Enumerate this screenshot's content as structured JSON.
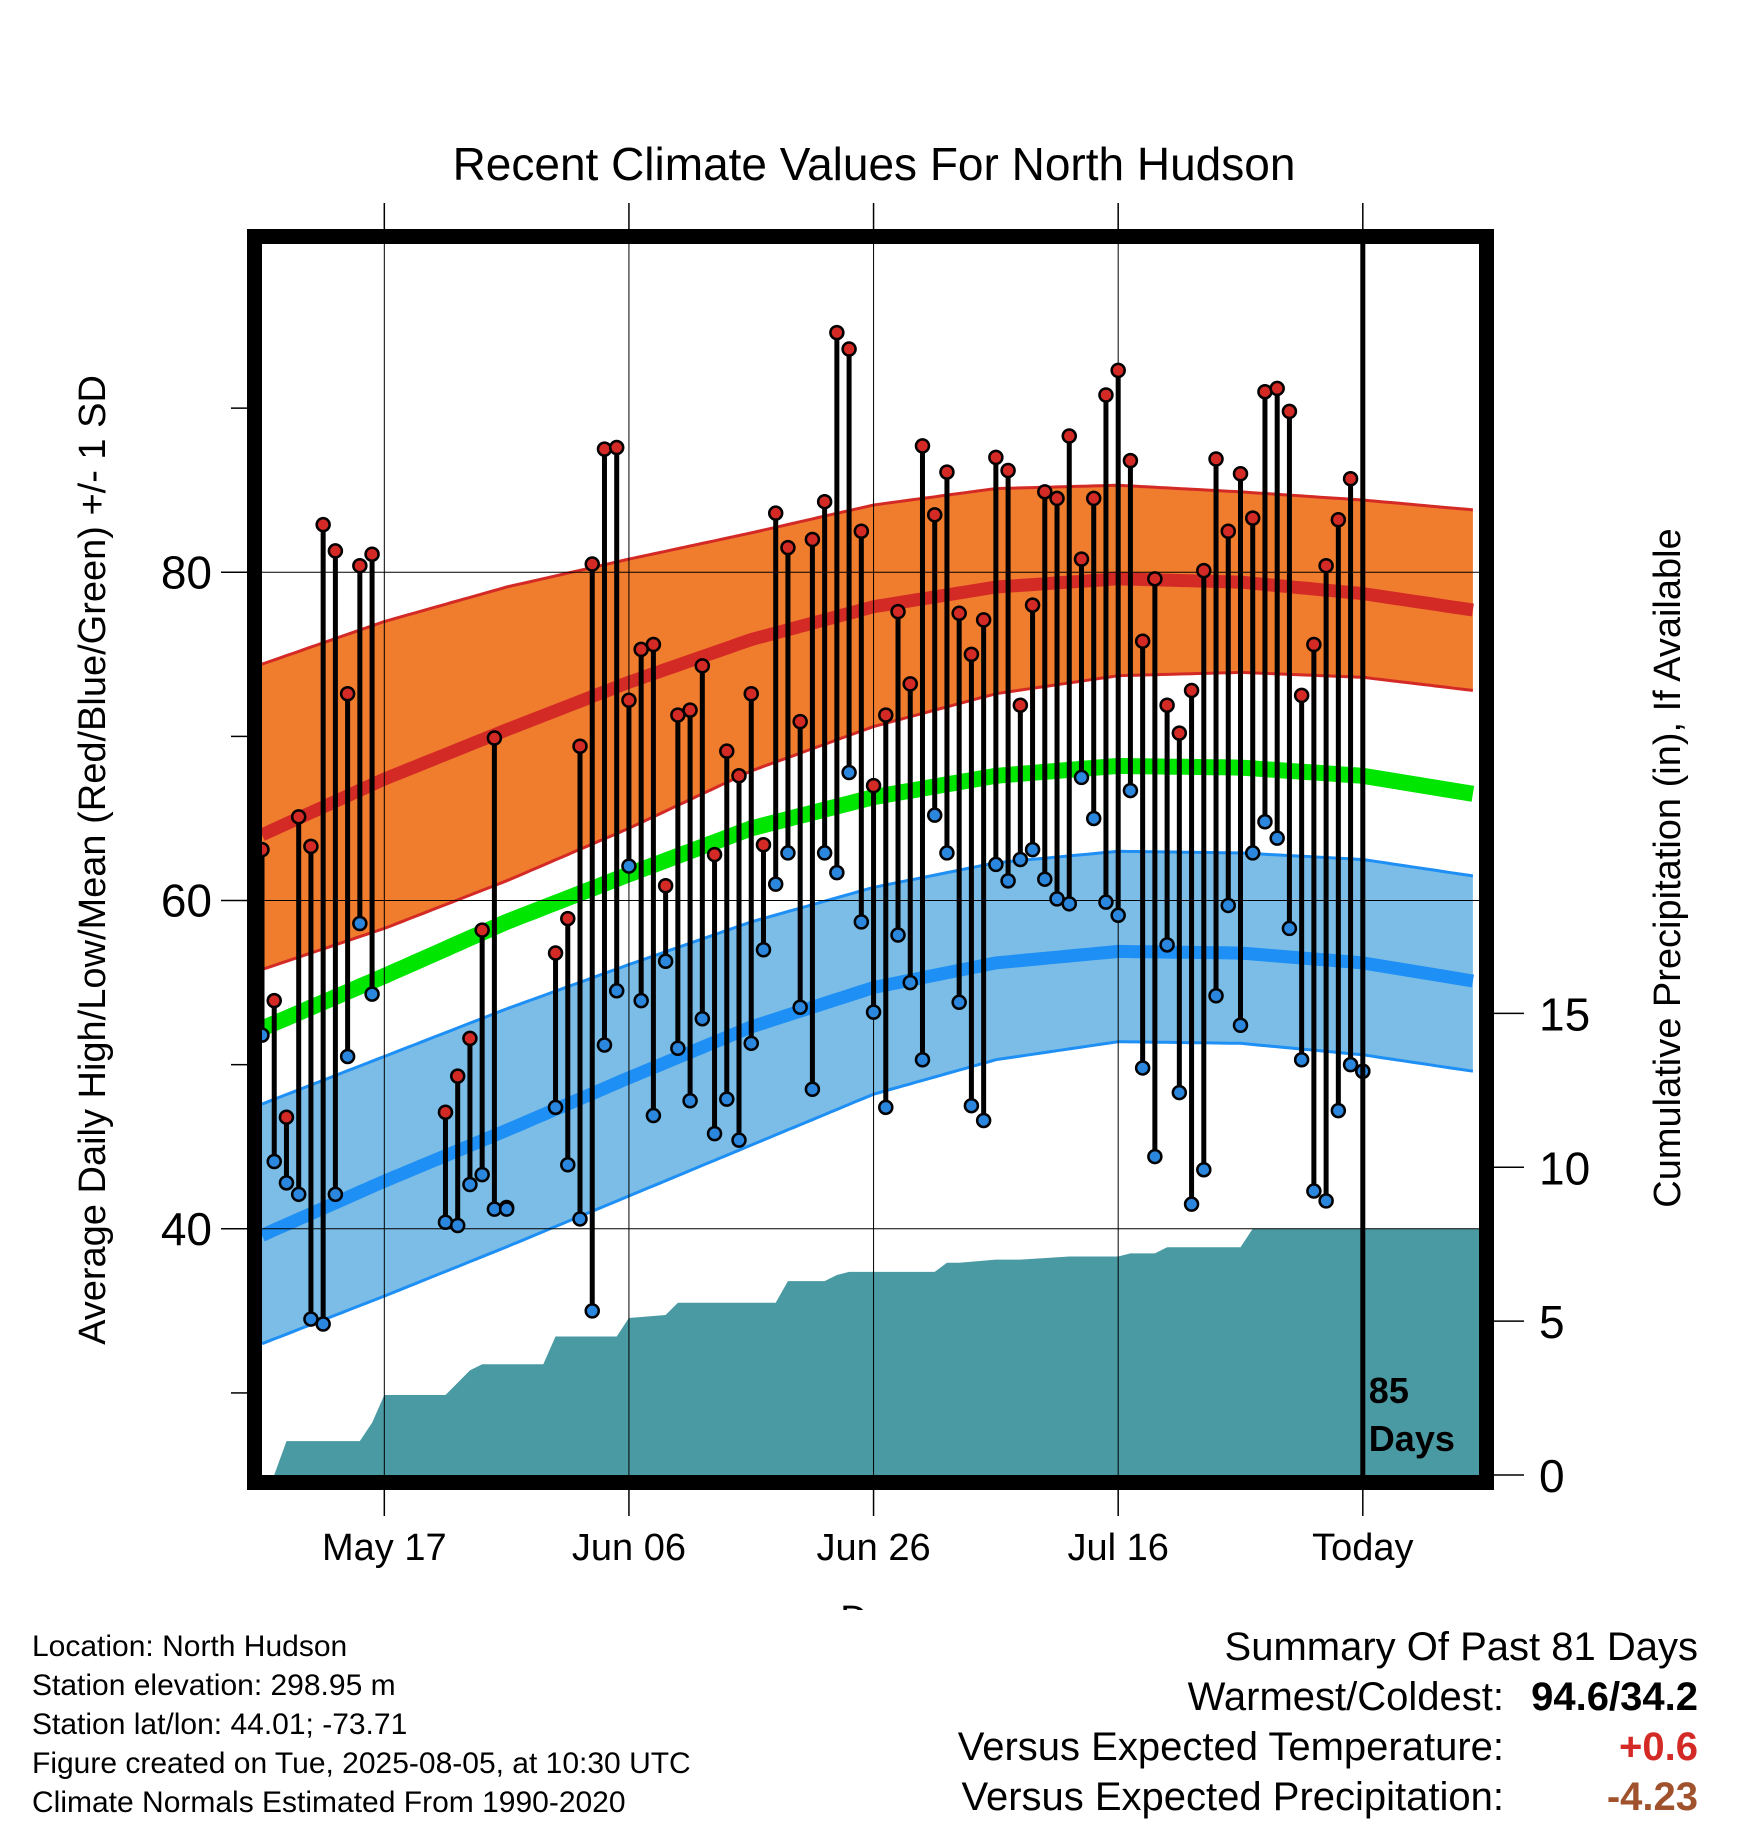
{
  "chart_data": {
    "type": "line",
    "title": "Recent Climate Values For North Hudson",
    "xlabel": "Day",
    "ylabel_left": "Average Daily High/Low/Mean (Red/Blue/Green) +/- 1 SD",
    "ylabel_right": "Cumulative Precipitation (in), If Available",
    "x_ticks": [
      {
        "day": 10,
        "label": "May 17"
      },
      {
        "day": 30,
        "label": "Jun 06"
      },
      {
        "day": 50,
        "label": "Jun 26"
      },
      {
        "day": 70,
        "label": "Jul 16"
      },
      {
        "day": 90,
        "label": "Today"
      }
    ],
    "xlim": [
      0,
      99.5
    ],
    "ylim_left": [
      25,
      100
    ],
    "y_ticks_left": [
      40,
      60,
      80
    ],
    "ylim_right": [
      0,
      40
    ],
    "y_ticks_right": [
      0,
      5,
      10,
      15
    ],
    "today_day": 90,
    "today_label": [
      "85",
      "Days"
    ],
    "normals": {
      "days": [
        0,
        10,
        20,
        30,
        40,
        50,
        60,
        70,
        80,
        90,
        99
      ],
      "high_mean": [
        64.0,
        67.4,
        70.4,
        73.3,
        75.9,
        77.9,
        79.1,
        79.6,
        79.4,
        78.7,
        77.7
      ],
      "high_upper": [
        74.4,
        77.0,
        79.1,
        80.8,
        82.4,
        84.1,
        85.1,
        85.3,
        84.9,
        84.4,
        83.8
      ],
      "high_lower": [
        55.8,
        58.3,
        61.2,
        64.4,
        67.9,
        70.6,
        72.6,
        73.7,
        73.9,
        73.6,
        72.8
      ],
      "mean": [
        52.2,
        55.4,
        58.7,
        61.6,
        64.4,
        66.3,
        67.6,
        68.2,
        68.1,
        67.6,
        66.5
      ],
      "low_mean": [
        39.6,
        42.9,
        46.0,
        49.2,
        52.3,
        54.7,
        56.2,
        56.9,
        56.8,
        56.2,
        55.1
      ],
      "low_upper": [
        47.6,
        50.5,
        53.4,
        56.1,
        58.7,
        60.8,
        62.3,
        63.0,
        62.9,
        62.5,
        61.5
      ],
      "low_lower": [
        33.0,
        35.9,
        38.9,
        42.0,
        45.1,
        48.2,
        50.3,
        51.4,
        51.3,
        50.6,
        49.6
      ]
    },
    "series": [
      {
        "name": "Daily High/Low",
        "days": [
          0,
          1,
          2,
          3,
          4,
          5,
          6,
          7,
          8,
          9,
          15,
          16,
          17,
          18,
          19,
          20,
          24,
          25,
          26,
          27,
          28,
          29,
          30,
          31,
          32,
          33,
          34,
          35,
          36,
          37,
          38,
          39,
          40,
          41,
          42,
          43,
          44,
          45,
          46,
          47,
          48,
          49,
          50,
          51,
          52,
          53,
          54,
          55,
          56,
          57,
          58,
          59,
          60,
          61,
          62,
          63,
          64,
          65,
          66,
          67,
          68,
          69,
          70,
          71,
          72,
          73,
          74,
          75,
          76,
          77,
          78,
          79,
          80,
          81,
          82,
          83,
          84,
          85,
          86,
          87,
          88,
          89,
          90
        ],
        "high": [
          63.1,
          53.9,
          46.8,
          65.1,
          63.3,
          82.9,
          81.3,
          72.6,
          80.4,
          81.1,
          47.1,
          49.3,
          51.6,
          58.2,
          69.9,
          41.3,
          56.8,
          58.9,
          69.4,
          80.5,
          87.5,
          87.6,
          72.2,
          75.3,
          75.6,
          60.9,
          71.3,
          71.6,
          74.3,
          62.8,
          69.1,
          67.6,
          72.6,
          63.4,
          83.6,
          81.5,
          70.9,
          82.0,
          84.3,
          94.6,
          93.6,
          82.5,
          67.0,
          71.3,
          77.6,
          73.2,
          87.7,
          83.5,
          86.1,
          77.5,
          75.0,
          77.1,
          87.0,
          86.2,
          71.9,
          78.0,
          84.9,
          84.5,
          88.3,
          80.8,
          84.5,
          90.8,
          92.3,
          86.8,
          75.8,
          79.6,
          71.9,
          70.2,
          72.8,
          80.1,
          86.9,
          82.5,
          86.0,
          83.3,
          91.0,
          91.2,
          89.8,
          72.5,
          75.6,
          80.4,
          83.2,
          85.7,
          49.6
        ],
        "low": [
          51.8,
          44.1,
          42.8,
          42.1,
          34.5,
          34.2,
          42.1,
          50.5,
          58.6,
          54.3,
          40.4,
          40.2,
          42.7,
          43.3,
          41.2,
          41.2,
          47.4,
          43.9,
          40.6,
          35.0,
          51.2,
          54.5,
          62.1,
          53.9,
          46.9,
          56.3,
          51.0,
          47.8,
          52.8,
          45.8,
          47.9,
          45.4,
          51.3,
          57.0,
          61.0,
          62.9,
          53.5,
          48.5,
          62.9,
          61.7,
          67.8,
          58.7,
          53.2,
          47.4,
          57.9,
          55.0,
          50.3,
          65.2,
          62.9,
          53.8,
          47.5,
          46.6,
          62.2,
          61.2,
          62.5,
          63.1,
          61.3,
          60.1,
          59.8,
          67.5,
          65.0,
          59.9,
          59.1,
          66.7,
          49.8,
          44.4,
          57.3,
          48.3,
          41.5,
          43.6,
          54.2,
          59.7,
          52.4,
          62.9,
          64.8,
          63.8,
          58.3,
          50.3,
          42.3,
          41.7,
          47.2,
          50.0,
          49.6
        ]
      }
    ],
    "precip_cumulative": {
      "name": "Cumulative Precipitation",
      "days": [
        1,
        2,
        3,
        4,
        8,
        9,
        10,
        11,
        15,
        16,
        17,
        18,
        23,
        24,
        25,
        29,
        30,
        33,
        34,
        35,
        42,
        43,
        46,
        47,
        48,
        55,
        56,
        57,
        60,
        62,
        66,
        70,
        71,
        73,
        74,
        76,
        80,
        81,
        82,
        84,
        90,
        99
      ],
      "values": [
        0.0,
        1.1,
        1.1,
        1.1,
        1.1,
        1.7,
        2.6,
        2.6,
        2.6,
        3.0,
        3.4,
        3.6,
        3.6,
        4.5,
        4.5,
        4.5,
        5.1,
        5.2,
        5.6,
        5.6,
        5.6,
        6.3,
        6.3,
        6.5,
        6.6,
        6.6,
        6.9,
        6.9,
        7.0,
        7.0,
        7.1,
        7.1,
        7.2,
        7.2,
        7.4,
        7.4,
        7.4,
        8.0,
        8.0,
        8.0,
        8.0,
        8.0
      ]
    },
    "colors": {
      "high_band": "#f07c2e",
      "high_mean": "#d42a26",
      "mean": "#00e600",
      "low_band": "#7bbde6",
      "low_mean": "#1e8ff5",
      "precip": "#4a9aa4",
      "high_marker": "#d42a26",
      "low_marker": "#2b86dd"
    },
    "grid": true
  },
  "metadata": [
    "Location: North Hudson",
    "Station elevation: 298.95 m",
    "Station lat/lon: 44.01; -73.71",
    "Figure created on Tue, 2025-08-05, at 10:30 UTC",
    "Climate Normals Estimated From 1990-2020"
  ],
  "summary": {
    "title": "Summary Of Past 81 Days",
    "warm_cold_label": "Warmest/Coldest:",
    "warm_cold_value": "94.6/34.2",
    "temp_label": "Versus Expected Temperature:",
    "temp_value": "+0.6",
    "temp_color": "#d42a26",
    "precip_label": "Versus Expected Precipitation:",
    "precip_value": "-4.23",
    "precip_color": "#a0522d"
  }
}
